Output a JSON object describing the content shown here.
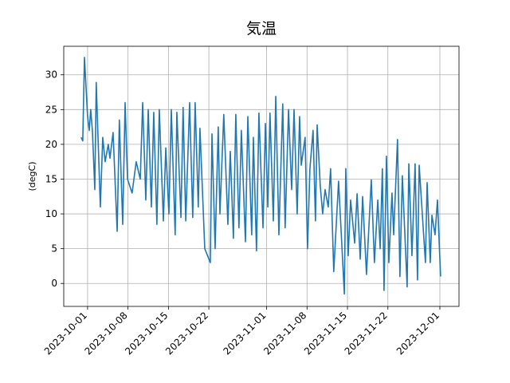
{
  "chart_data": {
    "type": "line",
    "title": "気温",
    "y_label": "(degC)",
    "x": [
      "2023-09-29 21:00",
      "2023-09-30 04:00",
      "2023-09-30 11:00",
      "2023-10-01 00:00",
      "2023-10-01 07:00",
      "2023-10-01 13:00",
      "2023-10-01 20:00",
      "2023-10-02 02:00",
      "2023-10-02 06:00",
      "2023-10-02 12:00",
      "2023-10-03 05:00",
      "2023-10-03 15:00",
      "2023-10-04 01:00",
      "2023-10-04 14:00",
      "2023-10-04 21:00",
      "2023-10-05 10:00",
      "2023-10-06 03:00",
      "2023-10-06 12:00",
      "2023-10-07 02:00",
      "2023-10-07 12:00",
      "2023-10-07 22:00",
      "2023-10-08 17:00",
      "2023-10-09 10:00",
      "2023-10-10 03:00",
      "2023-10-10 13:00",
      "2023-10-11 02:00",
      "2023-10-11 12:00",
      "2023-10-12 01:00",
      "2023-10-12 11:00",
      "2023-10-13 00:00",
      "2023-10-13 10:00",
      "2023-10-14 03:00",
      "2023-10-14 13:00",
      "2023-10-15 02:00",
      "2023-10-15 12:00",
      "2023-10-16 04:00",
      "2023-10-16 11:00",
      "2023-10-17 04:00",
      "2023-10-17 13:00",
      "2023-10-18 00:00",
      "2023-10-18 16:00",
      "2023-10-19 05:00",
      "2023-10-19 15:00",
      "2023-10-20 04:00",
      "2023-10-20 11:00",
      "2023-10-21 07:00",
      "2023-10-22 06:00",
      "2023-10-22 13:00",
      "2023-10-23 02:00",
      "2023-10-23 15:00",
      "2023-10-23 22:00",
      "2023-10-24 14:00",
      "2023-10-25 07:00",
      "2023-10-25 17:00",
      "2023-10-26 06:00",
      "2023-10-26 16:00",
      "2023-10-27 05:00",
      "2023-10-27 15:00",
      "2023-10-28 08:00",
      "2023-10-28 18:00",
      "2023-10-29 10:00",
      "2023-10-29 17:00",
      "2023-10-30 06:00",
      "2023-10-30 16:00",
      "2023-10-31 09:00",
      "2023-10-31 19:00",
      "2023-11-01 05:00",
      "2023-11-01 14:00",
      "2023-11-02 04:00",
      "2023-11-02 14:00",
      "2023-11-03 03:00",
      "2023-11-03 19:00",
      "2023-11-04 05:00",
      "2023-11-04 19:00",
      "2023-11-05 08:00",
      "2023-11-05 18:00",
      "2023-11-06 07:00",
      "2023-11-06 17:00",
      "2023-11-07 00:00",
      "2023-11-07 16:00",
      "2023-11-08 02:00",
      "2023-11-08 12:00",
      "2023-11-09 01:00",
      "2023-11-09 11:00",
      "2023-11-09 18:00",
      "2023-11-10 07:00",
      "2023-11-10 17:00",
      "2023-11-11 03:00",
      "2023-11-11 16:00",
      "2023-11-12 02:00",
      "2023-11-12 15:00",
      "2023-11-13 11:00",
      "2023-11-14 11:00",
      "2023-11-14 17:00",
      "2023-11-15 03:00",
      "2023-11-15 13:00",
      "2023-11-16 06:00",
      "2023-11-16 16:00",
      "2023-11-17 05:00",
      "2023-11-17 15:00",
      "2023-11-18 07:00",
      "2023-11-19 03:00",
      "2023-11-19 16:00",
      "2023-11-20 06:00",
      "2023-11-20 16:00",
      "2023-11-21 01:00",
      "2023-11-21 08:00",
      "2023-11-21 18:00",
      "2023-11-22 04:00",
      "2023-11-22 17:00",
      "2023-11-23 00:00",
      "2023-11-23 16:00",
      "2023-11-24 02:00",
      "2023-11-24 12:00",
      "2023-11-25 08:00",
      "2023-11-25 15:00",
      "2023-11-26 04:00",
      "2023-11-26 17:00",
      "2023-11-27 03:00",
      "2023-11-27 10:00",
      "2023-11-28 12:00",
      "2023-11-28 19:00",
      "2023-11-29 08:00",
      "2023-11-29 15:00",
      "2023-11-30 04:00",
      "2023-11-30 14:00",
      "2023-12-01 03:00"
    ],
    "series": [
      {
        "color": "#1f77b4",
        "values": [
          21.0,
          20.5,
          32.5,
          24,
          22,
          25,
          22,
          17,
          13.5,
          28.9,
          11,
          21,
          17.5,
          20,
          18,
          21.7,
          7.5,
          23.5,
          8.5,
          26,
          15,
          13,
          17.5,
          15,
          26,
          12,
          25,
          11,
          24.6,
          8.5,
          25,
          9,
          19.5,
          10,
          25,
          7,
          24.6,
          9.5,
          25.3,
          9,
          26,
          9.5,
          26,
          11,
          22.3,
          5,
          3,
          21.5,
          5,
          22.5,
          10,
          24.3,
          8.5,
          19,
          6.5,
          24.3,
          8,
          22,
          6,
          24,
          7,
          21,
          4.7,
          24.5,
          8,
          23,
          11,
          24.5,
          9,
          26.9,
          7,
          25.8,
          8,
          25,
          13.5,
          25,
          10,
          24,
          17,
          21,
          5,
          16.5,
          22,
          9,
          22.8,
          14,
          10,
          13.5,
          11,
          16.5,
          1.7,
          14.7,
          -1.5,
          16.5,
          4,
          12,
          5.8,
          12.9,
          3.5,
          12.5,
          1.3,
          14.9,
          3,
          12,
          5,
          16.5,
          -1,
          18.3,
          3,
          13,
          7,
          20.7,
          1,
          15.5,
          -0.5,
          17.2,
          4,
          17.2,
          0.5,
          17,
          3,
          14.5,
          3,
          9.8,
          7,
          12,
          1
        ]
      }
    ],
    "xlim": [
      "2023-09-26 21:00",
      "2023-12-04 07:30"
    ],
    "xticks": [
      "2023-10-01",
      "2023-10-08",
      "2023-10-15",
      "2023-10-22",
      "2023-11-01",
      "2023-11-08",
      "2023-11-15",
      "2023-11-22",
      "2023-12-01"
    ],
    "ylim": [
      -3.3,
      34.1
    ],
    "yticks": [
      0,
      5,
      10,
      15,
      20,
      25,
      30
    ],
    "grid": true
  }
}
